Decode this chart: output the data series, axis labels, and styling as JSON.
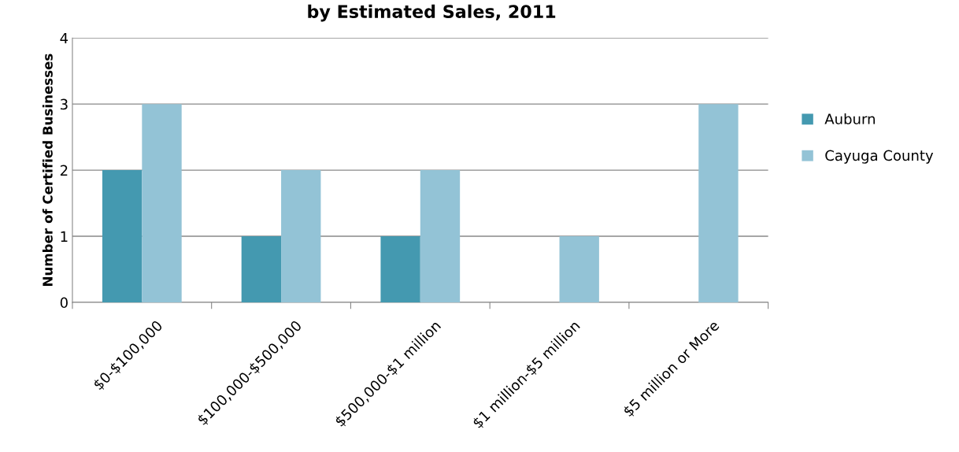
{
  "chart_data": {
    "type": "bar",
    "title": "by Estimated Sales, 2011",
    "ylabel": "Number of Certified Businesses",
    "categories": [
      "$0-$100,000",
      "$100,000-$500,000",
      "$500,000-$1 million",
      "$1 million-$5 million",
      "$5 million or More"
    ],
    "series": [
      {
        "name": "Auburn",
        "color": "#4499b0",
        "values": [
          2,
          1,
          1,
          0,
          0
        ]
      },
      {
        "name": "Cayuga County",
        "color": "#93c3d6",
        "values": [
          3,
          2,
          2,
          1,
          3
        ]
      }
    ],
    "ylim": [
      0,
      4
    ],
    "yticks": [
      0,
      1,
      2,
      3,
      4
    ],
    "grid": "y",
    "legend": "right"
  }
}
